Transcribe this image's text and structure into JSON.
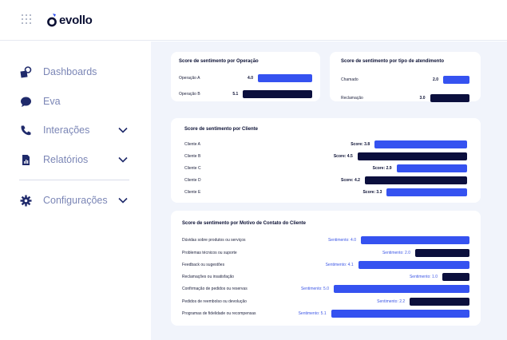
{
  "header": {
    "brand": "evollo"
  },
  "sidebar": {
    "items": [
      {
        "label": "Dashboards",
        "icon": "dashboard-icon",
        "has_chevron": false
      },
      {
        "label": "Eva",
        "icon": "chat-bubble-icon",
        "has_chevron": false
      },
      {
        "label": "Interações",
        "icon": "phone-icon",
        "has_chevron": true
      },
      {
        "label": "Relatórios",
        "icon": "document-icon",
        "has_chevron": true
      },
      {
        "label": "Configurações",
        "icon": "gear-icon",
        "has_chevron": true
      }
    ]
  },
  "colors": {
    "accent": "#3552f0",
    "dark": "#0b0f3d",
    "nav_text": "#7b86b6",
    "main_bg": "#f1f4fb"
  },
  "chart_data": [
    {
      "type": "bar",
      "title": "Score de sentimento por Operação",
      "categories": [
        "Operação A",
        "Operação B"
      ],
      "values": [
        4.0,
        5.1
      ],
      "value_labels": [
        "4.0",
        "5.1"
      ],
      "colors": [
        "#3552f0",
        "#0b0f3d"
      ]
    },
    {
      "type": "bar",
      "title": "Score de sentimento por tipo de atendimento",
      "categories": [
        "Chamado",
        "Reclamação"
      ],
      "values": [
        2.0,
        3.0
      ],
      "value_labels": [
        "2.0",
        "3.0"
      ],
      "colors": [
        "#3552f0",
        "#0b0f3d"
      ]
    },
    {
      "type": "bar",
      "title": "Score de sentimento por Cliente",
      "categories": [
        "Cliente A",
        "Cliente B",
        "Cliente C",
        "Cliente D",
        "Cliente E"
      ],
      "values": [
        3.8,
        4.5,
        2.9,
        4.2,
        3.3
      ],
      "value_labels": [
        "Score: 3.8",
        "Score: 4.5",
        "Score: 2.9",
        "Score: 4.2",
        "Score: 3.3"
      ],
      "colors": [
        "#3552f0",
        "#0b0f3d",
        "#3552f0",
        "#0b0f3d",
        "#3552f0"
      ]
    },
    {
      "type": "bar",
      "title": "Score de sentimento por Motivo de Contato do Cliente",
      "categories": [
        "Dúvidas sobre produtos ou serviços",
        "Problemas técnicos ou suporte",
        "Feedback ou sugestões",
        "Reclamações ou insatisfação",
        "Confirmação de pedidos ou reservas",
        "Pedidos de reembolso ou devolução",
        "Programas de fidelidade ou recompensas"
      ],
      "values": [
        4.0,
        2.0,
        4.1,
        1.0,
        5.0,
        2.2,
        5.1
      ],
      "value_labels": [
        "Sentimento: 4.0",
        "Sentimento: 2.0",
        "Sentimento: 4.1",
        "Sentimento: 1.0",
        "Sentimento: 5.0",
        "Sentimento: 2.2",
        "Sentimento: 5.1"
      ],
      "colors": [
        "#3552f0",
        "#0b0f3d",
        "#3552f0",
        "#0b0f3d",
        "#3552f0",
        "#0b0f3d",
        "#3552f0"
      ]
    }
  ]
}
